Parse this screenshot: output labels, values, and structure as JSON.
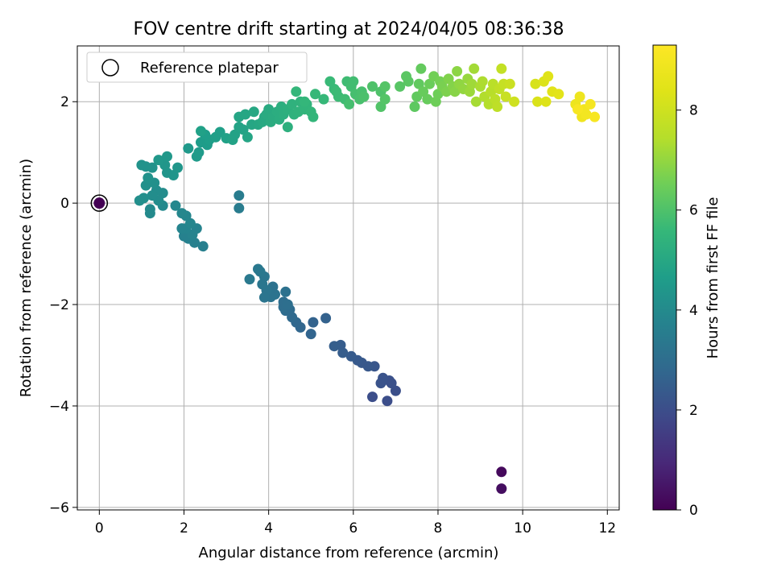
{
  "chart_data": {
    "type": "scatter",
    "title": "FOV centre drift starting at 2024/04/05 08:36:38",
    "xlabel": "Angular distance from reference (arcmin)",
    "ylabel": "Rotation from reference (arcmin)",
    "xlim": [
      -0.52,
      12.28
    ],
    "ylim": [
      -6.05,
      3.1
    ],
    "xticks": [
      0,
      2,
      4,
      6,
      8,
      10,
      12
    ],
    "xtick_labels": [
      "0",
      "2",
      "4",
      "6",
      "8",
      "10",
      "12"
    ],
    "yticks": [
      -6,
      -4,
      -2,
      0,
      2
    ],
    "ytick_labels": [
      "−6",
      "−4",
      "−2",
      "0",
      "2"
    ],
    "grid": true,
    "legend": {
      "location": "upper-left",
      "entries": [
        "Reference platepar"
      ]
    },
    "colorbar": {
      "label": "Hours from first FF file",
      "colormap": "viridis",
      "range": [
        0,
        9.3
      ],
      "ticks": [
        0,
        2,
        4,
        6,
        8
      ],
      "tick_labels": [
        "0",
        "2",
        "4",
        "6",
        "8"
      ]
    },
    "reference_point": {
      "x": 0,
      "y": 0,
      "hours": 0
    },
    "points": [
      [
        9.5,
        -5.3,
        0.2
      ],
      [
        9.5,
        -5.63,
        0.3
      ],
      [
        6.45,
        -3.82,
        2.0
      ],
      [
        6.8,
        -3.9,
        2.0
      ],
      [
        7.0,
        -3.7,
        2.05
      ],
      [
        6.9,
        -3.55,
        2.1
      ],
      [
        6.85,
        -3.5,
        2.1
      ],
      [
        6.7,
        -3.45,
        2.15
      ],
      [
        6.65,
        -3.55,
        2.15
      ],
      [
        6.5,
        -3.22,
        2.25
      ],
      [
        6.35,
        -3.22,
        2.3
      ],
      [
        6.2,
        -3.15,
        2.3
      ],
      [
        6.1,
        -3.1,
        2.35
      ],
      [
        5.95,
        -3.02,
        2.4
      ],
      [
        5.75,
        -2.95,
        2.45
      ],
      [
        5.7,
        -2.8,
        2.45
      ],
      [
        5.55,
        -2.82,
        2.5
      ],
      [
        5.35,
        -2.27,
        2.6
      ],
      [
        5.05,
        -2.35,
        2.65
      ],
      [
        5.0,
        -2.58,
        2.7
      ],
      [
        4.75,
        -2.45,
        2.75
      ],
      [
        4.65,
        -2.35,
        2.8
      ],
      [
        4.55,
        -2.25,
        2.85
      ],
      [
        4.5,
        -2.1,
        2.9
      ],
      [
        4.4,
        -2.12,
        2.95
      ],
      [
        4.35,
        -2.05,
        3.0
      ],
      [
        4.35,
        -1.95,
        3.0
      ],
      [
        4.45,
        -2.0,
        3.05
      ],
      [
        4.4,
        -1.75,
        3.1
      ],
      [
        4.1,
        -1.65,
        3.15
      ],
      [
        4.15,
        -1.8,
        3.2
      ],
      [
        4.05,
        -1.85,
        3.2
      ],
      [
        3.95,
        -1.72,
        3.25
      ],
      [
        3.9,
        -1.86,
        3.25
      ],
      [
        3.85,
        -1.6,
        3.3
      ],
      [
        3.9,
        -1.45,
        3.3
      ],
      [
        3.8,
        -1.35,
        3.35
      ],
      [
        3.75,
        -1.3,
        3.35
      ],
      [
        3.55,
        -1.5,
        3.4
      ],
      [
        3.3,
        0.15,
        3.5
      ],
      [
        3.3,
        -0.1,
        3.5
      ],
      [
        2.45,
        -0.85,
        3.6
      ],
      [
        2.25,
        -0.78,
        3.65
      ],
      [
        2.1,
        -0.7,
        3.7
      ],
      [
        2.0,
        -0.65,
        3.7
      ],
      [
        2.2,
        -0.62,
        3.75
      ],
      [
        2.3,
        -0.5,
        3.75
      ],
      [
        2.05,
        -0.5,
        3.8
      ],
      [
        1.95,
        -0.5,
        3.8
      ],
      [
        2.15,
        -0.4,
        3.85
      ],
      [
        2.05,
        -0.25,
        3.85
      ],
      [
        1.95,
        -0.2,
        3.9
      ],
      [
        1.8,
        -0.05,
        3.9
      ],
      [
        1.5,
        -0.05,
        3.95
      ],
      [
        1.2,
        -0.12,
        4.0
      ],
      [
        1.2,
        -0.2,
        4.0
      ],
      [
        1.4,
        0.05,
        4.05
      ],
      [
        1.5,
        0.2,
        4.05
      ],
      [
        1.35,
        0.25,
        4.1
      ],
      [
        1.25,
        0.15,
        4.1
      ],
      [
        1.05,
        0.1,
        4.15
      ],
      [
        0.95,
        0.05,
        4.15
      ],
      [
        1.1,
        0.35,
        4.2
      ],
      [
        1.3,
        0.4,
        4.2
      ],
      [
        1.15,
        0.5,
        4.25
      ],
      [
        1.25,
        0.7,
        4.25
      ],
      [
        1.0,
        0.75,
        4.3
      ],
      [
        1.1,
        0.72,
        4.3
      ],
      [
        1.6,
        0.6,
        4.35
      ],
      [
        1.75,
        0.55,
        4.35
      ],
      [
        1.85,
        0.7,
        4.4
      ],
      [
        1.55,
        0.75,
        4.4
      ],
      [
        1.4,
        0.85,
        4.45
      ],
      [
        1.6,
        0.92,
        4.45
      ],
      [
        2.1,
        1.08,
        4.5
      ],
      [
        2.3,
        0.92,
        4.55
      ],
      [
        2.35,
        1.0,
        4.55
      ],
      [
        2.4,
        1.2,
        4.6
      ],
      [
        2.55,
        1.15,
        4.6
      ],
      [
        2.6,
        1.25,
        4.65
      ],
      [
        2.5,
        1.35,
        4.65
      ],
      [
        2.75,
        1.3,
        4.7
      ],
      [
        2.85,
        1.4,
        4.7
      ],
      [
        2.4,
        1.42,
        4.75
      ],
      [
        3.0,
        1.28,
        4.75
      ],
      [
        3.15,
        1.25,
        4.8
      ],
      [
        3.2,
        1.35,
        4.8
      ],
      [
        3.3,
        1.5,
        4.85
      ],
      [
        3.4,
        1.45,
        4.85
      ],
      [
        3.5,
        1.3,
        4.9
      ],
      [
        3.3,
        1.7,
        4.9
      ],
      [
        3.45,
        1.75,
        4.95
      ],
      [
        3.6,
        1.55,
        4.95
      ],
      [
        3.65,
        1.8,
        5.0
      ],
      [
        3.75,
        1.55,
        5.0
      ],
      [
        3.85,
        1.6,
        5.05
      ],
      [
        3.9,
        1.7,
        5.05
      ],
      [
        3.95,
        1.75,
        5.1
      ],
      [
        4.0,
        1.85,
        5.1
      ],
      [
        4.05,
        1.6,
        5.15
      ],
      [
        4.1,
        1.7,
        5.15
      ],
      [
        4.2,
        1.8,
        5.2
      ],
      [
        4.25,
        1.65,
        5.2
      ],
      [
        4.3,
        1.9,
        5.25
      ],
      [
        4.35,
        1.75,
        5.25
      ],
      [
        4.45,
        1.5,
        5.3
      ],
      [
        4.45,
        1.85,
        5.3
      ],
      [
        4.55,
        1.95,
        5.35
      ],
      [
        4.6,
        1.75,
        5.35
      ],
      [
        4.7,
        1.8,
        5.4
      ],
      [
        4.75,
        2.0,
        5.4
      ],
      [
        4.85,
        1.85,
        5.45
      ],
      [
        4.9,
        1.95,
        5.45
      ],
      [
        5.0,
        1.8,
        5.5
      ],
      [
        5.05,
        1.7,
        5.5
      ],
      [
        4.65,
        2.2,
        5.55
      ],
      [
        4.85,
        2.0,
        5.55
      ],
      [
        5.1,
        2.15,
        5.6
      ],
      [
        5.3,
        2.05,
        5.6
      ],
      [
        5.45,
        2.4,
        5.65
      ],
      [
        5.55,
        2.25,
        5.65
      ],
      [
        5.6,
        2.2,
        5.7
      ],
      [
        5.65,
        2.1,
        5.7
      ],
      [
        5.8,
        2.05,
        5.75
      ],
      [
        5.85,
        2.4,
        5.75
      ],
      [
        5.95,
        2.3,
        5.8
      ],
      [
        6.0,
        2.4,
        5.8
      ],
      [
        6.05,
        2.15,
        5.85
      ],
      [
        5.9,
        1.95,
        5.85
      ],
      [
        6.15,
        2.05,
        5.9
      ],
      [
        6.2,
        2.2,
        5.9
      ],
      [
        6.25,
        2.1,
        5.95
      ],
      [
        6.45,
        2.3,
        6.0
      ],
      [
        6.65,
        2.2,
        6.0
      ],
      [
        6.65,
        1.9,
        6.05
      ],
      [
        6.75,
        2.05,
        6.1
      ],
      [
        6.75,
        2.3,
        6.1
      ],
      [
        7.1,
        2.3,
        6.15
      ],
      [
        7.25,
        2.5,
        6.2
      ],
      [
        7.3,
        2.4,
        6.2
      ],
      [
        7.45,
        1.9,
        6.25
      ],
      [
        7.5,
        2.1,
        6.3
      ],
      [
        7.55,
        2.35,
        6.3
      ],
      [
        7.6,
        2.65,
        6.35
      ],
      [
        7.65,
        2.2,
        6.4
      ],
      [
        7.75,
        2.05,
        6.4
      ],
      [
        7.8,
        2.35,
        6.45
      ],
      [
        7.95,
        2.0,
        6.5
      ],
      [
        8.0,
        2.15,
        6.5
      ],
      [
        7.9,
        2.5,
        6.55
      ],
      [
        8.05,
        2.4,
        6.6
      ],
      [
        8.1,
        2.3,
        6.65
      ],
      [
        8.2,
        2.2,
        6.7
      ],
      [
        8.25,
        2.45,
        6.75
      ],
      [
        8.35,
        2.3,
        6.8
      ],
      [
        8.4,
        2.2,
        6.85
      ],
      [
        8.45,
        2.6,
        6.9
      ],
      [
        8.5,
        2.35,
        6.95
      ],
      [
        8.6,
        2.25,
        7.0
      ],
      [
        8.7,
        2.45,
        7.05
      ],
      [
        8.75,
        2.2,
        7.1
      ],
      [
        8.8,
        2.35,
        7.15
      ],
      [
        8.85,
        2.65,
        7.2
      ],
      [
        8.9,
        2.0,
        7.25
      ],
      [
        9.0,
        2.3,
        7.3
      ],
      [
        9.05,
        2.4,
        7.35
      ],
      [
        9.1,
        2.1,
        7.4
      ],
      [
        9.2,
        1.95,
        7.45
      ],
      [
        9.25,
        2.2,
        7.5
      ],
      [
        9.3,
        2.35,
        7.55
      ],
      [
        9.35,
        2.05,
        7.6
      ],
      [
        9.4,
        1.9,
        7.65
      ],
      [
        9.45,
        2.25,
        7.7
      ],
      [
        9.5,
        2.65,
        7.75
      ],
      [
        9.55,
        2.35,
        7.8
      ],
      [
        9.6,
        2.1,
        7.85
      ],
      [
        9.7,
        2.35,
        7.9
      ],
      [
        9.8,
        2.0,
        8.0
      ],
      [
        10.3,
        2.35,
        8.2
      ],
      [
        10.35,
        2.0,
        8.25
      ],
      [
        10.5,
        2.4,
        8.3
      ],
      [
        10.55,
        2.0,
        8.35
      ],
      [
        10.6,
        2.5,
        8.4
      ],
      [
        10.7,
        2.2,
        8.45
      ],
      [
        10.85,
        2.15,
        8.5
      ],
      [
        11.25,
        1.95,
        8.8
      ],
      [
        11.35,
        2.1,
        8.85
      ],
      [
        11.4,
        1.7,
        8.9
      ],
      [
        11.45,
        1.85,
        8.95
      ],
      [
        11.5,
        1.75,
        9.0
      ],
      [
        11.6,
        1.95,
        9.05
      ],
      [
        11.7,
        1.7,
        9.1
      ],
      [
        11.3,
        1.85,
        9.1
      ]
    ]
  }
}
